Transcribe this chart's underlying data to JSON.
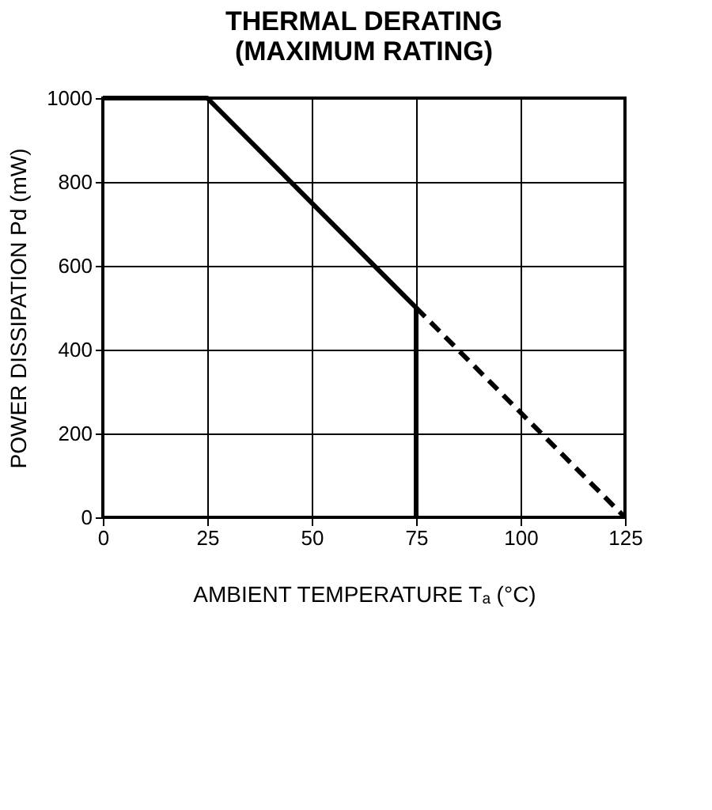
{
  "chart_data": {
    "type": "line",
    "title": "THERMAL DERATING\n(MAXIMUM RATING)",
    "xlabel": "AMBIENT TEMPERATURE  Tₐ (°C)",
    "ylabel": "POWER DISSIPATION   Pd (mW)",
    "series": [
      {
        "x": [
          0,
          25,
          75,
          75
        ],
        "values": [
          1000,
          1000,
          500,
          0
        ],
        "color": "#000000",
        "line_style": "solid"
      },
      {
        "x": [
          75,
          125
        ],
        "values": [
          500,
          0
        ],
        "color": "#000000",
        "line_style": "dashed"
      }
    ],
    "xlim": [
      0,
      125
    ],
    "xticks": [
      0,
      25,
      50,
      75,
      100,
      125
    ],
    "ylim": [
      0,
      1000
    ],
    "yticks": [
      0,
      200,
      400,
      600,
      800,
      1000
    ],
    "grid": true,
    "marker": "none"
  }
}
